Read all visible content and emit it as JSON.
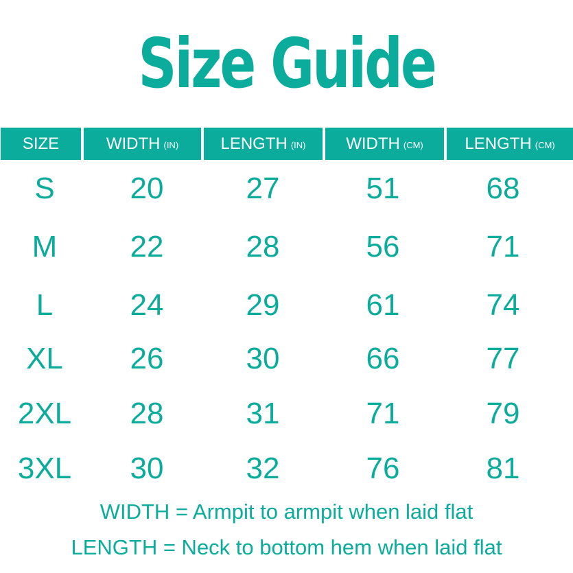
{
  "title": "Size Guide",
  "headers": [
    {
      "label": "SIZE",
      "unit": ""
    },
    {
      "label": "WIDTH",
      "unit": "(IN)"
    },
    {
      "label": "LENGTH",
      "unit": "(IN)"
    },
    {
      "label": "WIDTH",
      "unit": "(CM)"
    },
    {
      "label": "LENGTH",
      "unit": "(CM)"
    }
  ],
  "rows": [
    [
      "S",
      "20",
      "27",
      "51",
      "68"
    ],
    [
      "M",
      "22",
      "28",
      "56",
      "71"
    ],
    [
      "L",
      "24",
      "29",
      "61",
      "74"
    ],
    [
      "XL",
      "26",
      "30",
      "66",
      "77"
    ],
    [
      "2XL",
      "28",
      "31",
      "71",
      "79"
    ],
    [
      "3XL",
      "30",
      "32",
      "76",
      "81"
    ]
  ],
  "notes": [
    "WIDTH = Armpit to armpit when laid  flat",
    "LENGTH = Neck to bottom hem when laid flat"
  ],
  "colors": {
    "accent": "#0bac9c",
    "header_text": "#ffffff"
  }
}
